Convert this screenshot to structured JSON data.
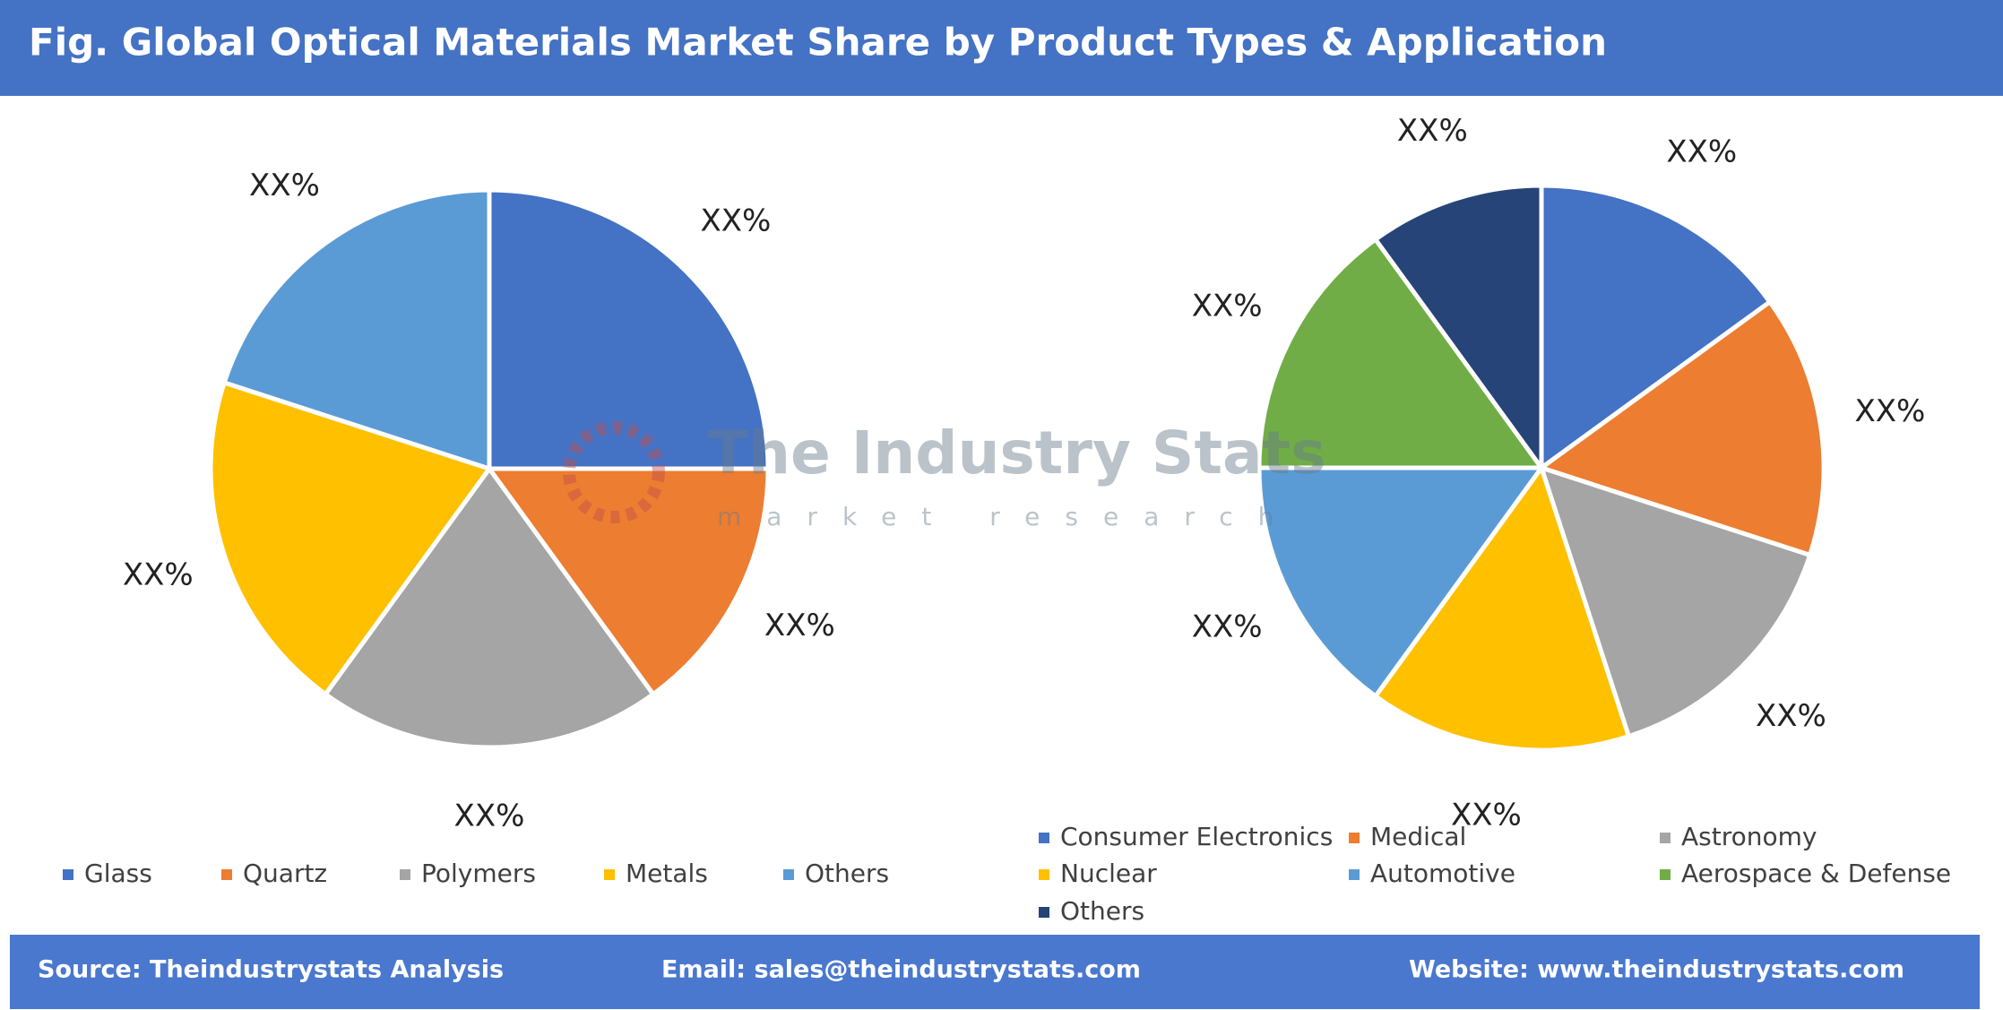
{
  "title": "Fig. Global Optical Materials Market Share by Product Types & Application",
  "watermark": {
    "name": "The Industry Stats",
    "tagline": "market research"
  },
  "footer": {
    "source": "Source: Theindustrystats Analysis",
    "email": "Email: sales@theindustrystats.com",
    "website": "Website: www.theindustrystats.com"
  },
  "chart_data": [
    {
      "type": "pie",
      "categories": [
        "Glass",
        "Quartz",
        "Polymers",
        "Metals",
        "Others"
      ],
      "values": [
        25,
        15,
        20,
        20,
        20
      ],
      "value_labels": [
        "XX%",
        "XX%",
        "XX%",
        "XX%",
        "XX%"
      ],
      "colors": [
        "#4472c4",
        "#ed7d31",
        "#a5a5a5",
        "#ffc000",
        "#5b9bd5"
      ]
    },
    {
      "type": "pie",
      "categories": [
        "Consumer Electronics",
        "Medical",
        "Astronomy",
        "Nuclear",
        "Automotive",
        "Aerospace & Defense",
        "Others"
      ],
      "values": [
        15,
        15,
        15,
        15,
        15,
        15,
        10
      ],
      "value_labels": [
        "XX%",
        "XX%",
        "XX%",
        "XX%",
        "XX%",
        "XX%",
        "XX%"
      ],
      "colors": [
        "#4472c4",
        "#ed7d31",
        "#a5a5a5",
        "#ffc000",
        "#5b9bd5",
        "#70ad47",
        "#264478"
      ]
    }
  ]
}
